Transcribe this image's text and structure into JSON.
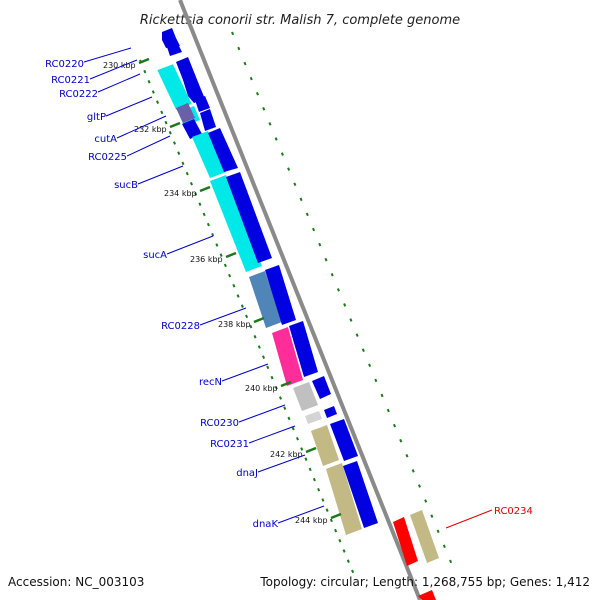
{
  "title": "Rickettsia conorii str. Malish 7, complete genome",
  "footer": {
    "accession": "Accession: NC_003103",
    "summary": "Topology: circular; Length: 1,268,755 bp; Genes: 1,412"
  },
  "colors": {
    "blue_cds": "#0000e0",
    "cyan_cds": "#00e8e8",
    "label_blue": "#0000cc",
    "label_red": "#dd0000",
    "backbone": "#888888",
    "dots": "#1a7a1a"
  },
  "ticks": [
    {
      "label": "230 kbp",
      "kbp": 230
    },
    {
      "label": "232 kbp",
      "kbp": 232
    },
    {
      "label": "234 kbp",
      "kbp": 234
    },
    {
      "label": "236 kbp",
      "kbp": 236
    },
    {
      "label": "238 kbp",
      "kbp": 238
    },
    {
      "label": "240 kbp",
      "kbp": 240
    },
    {
      "label": "242 kbp",
      "kbp": 242
    },
    {
      "label": "244 kbp",
      "kbp": 244
    }
  ],
  "gene_labels": [
    {
      "name": "RC0220"
    },
    {
      "name": "RC0221"
    },
    {
      "name": "RC0222"
    },
    {
      "name": "gltP"
    },
    {
      "name": "cutA"
    },
    {
      "name": "RC0225"
    },
    {
      "name": "sucB"
    },
    {
      "name": "sucA"
    },
    {
      "name": "RC0228"
    },
    {
      "name": "recN"
    },
    {
      "name": "RC0230"
    },
    {
      "name": "RC0231"
    },
    {
      "name": "dnaJ"
    },
    {
      "name": "dnaK"
    },
    {
      "name": "RC0234"
    }
  ]
}
